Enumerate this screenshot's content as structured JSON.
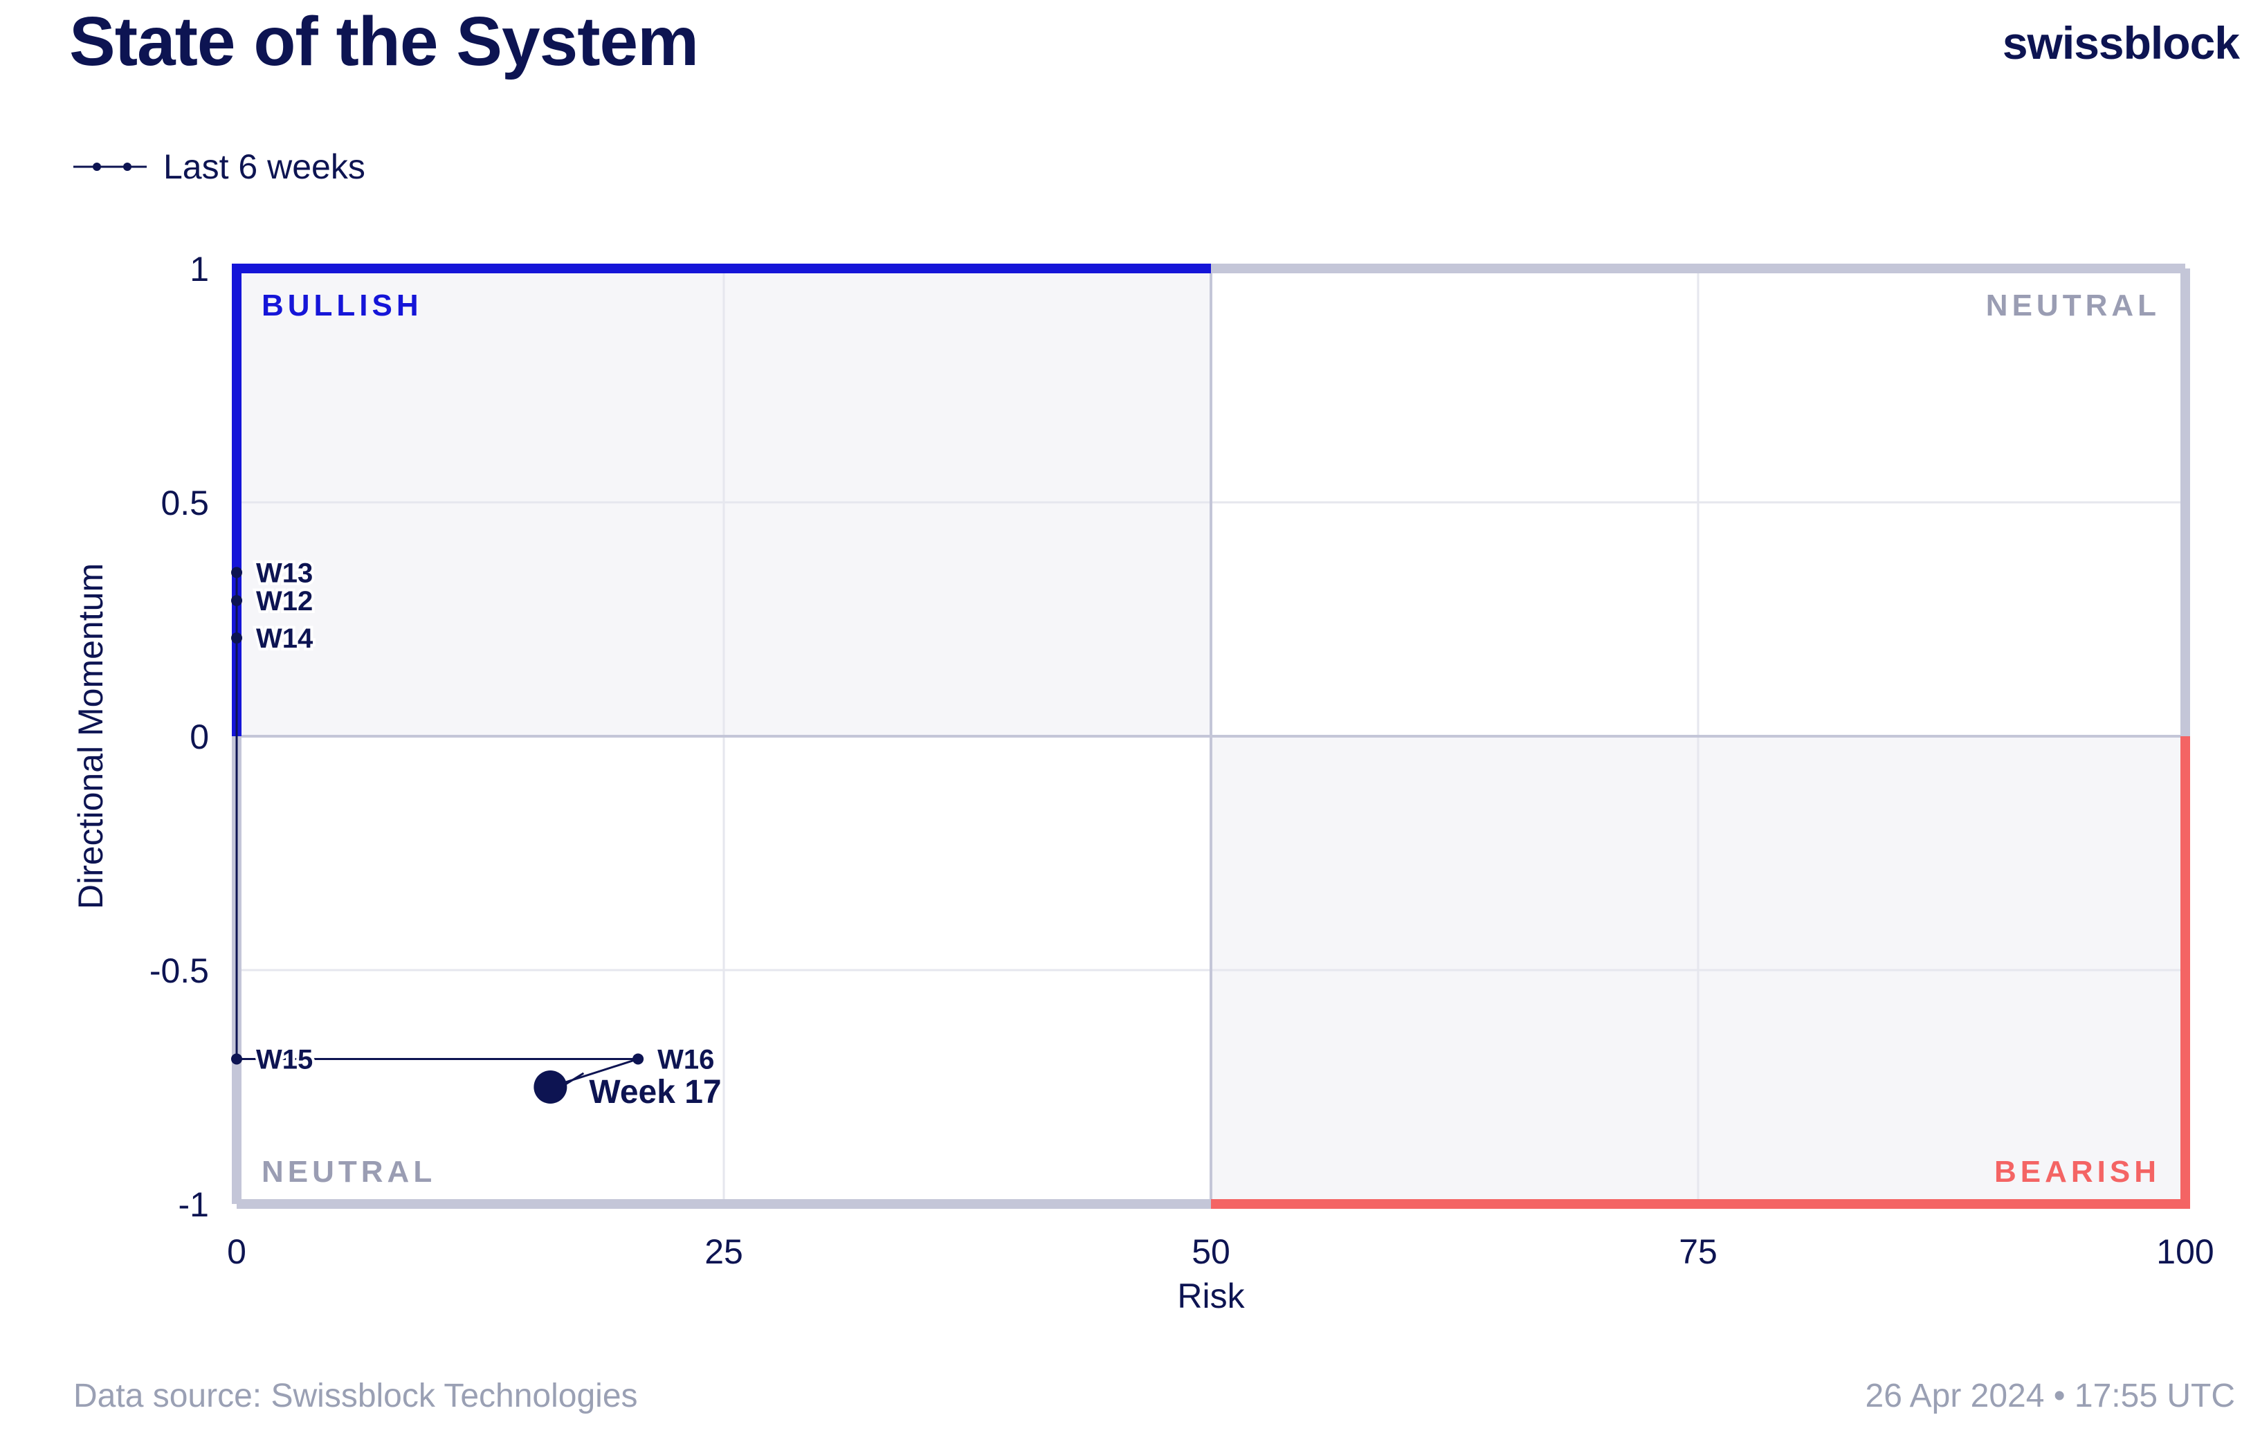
{
  "header": {
    "title": "State of the System",
    "brand": "swissblock"
  },
  "legend": {
    "label": "Last 6 weeks"
  },
  "footer": {
    "source": "Data source: Swissblock Technologies",
    "timestamp": "26 Apr 2024 • 17:55 UTC"
  },
  "colors": {
    "bullish": "#1515d8",
    "bearish": "#f46464",
    "neutral_border": "#c4c6d8",
    "shade": "#f6f6f9",
    "ink": "#0d1452",
    "grid": "#e6e7ee",
    "neutral_label": "#9a9db3"
  },
  "chart_data": {
    "type": "scatter",
    "xlabel": "Risk",
    "ylabel": "Directional Momentum",
    "xlim": [
      0,
      100
    ],
    "ylim": [
      -1,
      1
    ],
    "xticks": [
      0,
      25,
      50,
      75,
      100
    ],
    "yticks": [
      1,
      0.5,
      0,
      -0.5,
      -1
    ],
    "ytick_labels": [
      "1",
      "0.5",
      "0",
      "-0.5",
      "-1"
    ],
    "grid": true,
    "quadrants": [
      {
        "label": "BULLISH",
        "position": "top-left"
      },
      {
        "label": "NEUTRAL",
        "position": "top-right"
      },
      {
        "label": "NEUTRAL",
        "position": "bottom-left"
      },
      {
        "label": "BEARISH",
        "position": "bottom-right"
      }
    ],
    "series": [
      {
        "name": "Last 6 weeks",
        "points": [
          {
            "label": "W12",
            "x": 0,
            "y": 0.29
          },
          {
            "label": "W13",
            "x": 0,
            "y": 0.35
          },
          {
            "label": "W14",
            "x": 0,
            "y": 0.21
          },
          {
            "label": "W15",
            "x": 0,
            "y": -0.69
          },
          {
            "label": "W16",
            "x": 20.6,
            "y": -0.69
          },
          {
            "label": "Week 17",
            "x": 16.1,
            "y": -0.75
          }
        ]
      }
    ]
  }
}
